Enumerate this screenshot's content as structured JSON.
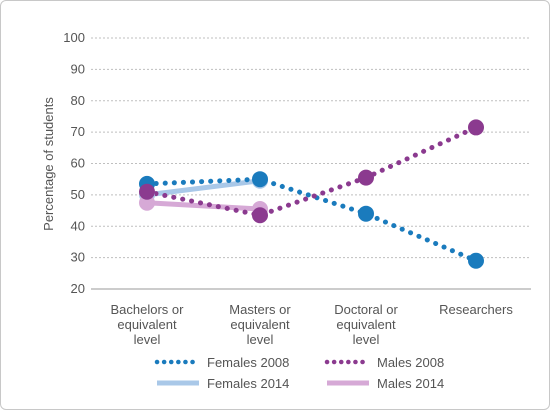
{
  "chart_data": {
    "type": "line",
    "title": "",
    "xlabel": "",
    "ylabel": "Percentage of students",
    "ylim": [
      20,
      100
    ],
    "yticks": [
      20,
      30,
      40,
      50,
      60,
      70,
      80,
      90,
      100
    ],
    "categories": [
      [
        "Bachelors or",
        "equivalent",
        "level"
      ],
      [
        "Masters or",
        "equivalent",
        "level"
      ],
      [
        "Doctoral or",
        "equivalent",
        "level"
      ],
      [
        "Researchers"
      ]
    ],
    "grid": true,
    "legend_position": "bottom",
    "series": [
      {
        "name": "Females 2008",
        "values": [
          53.5,
          55,
          44,
          29
        ],
        "color": "#1a7bbd",
        "style": "dotted"
      },
      {
        "name": "Males 2008",
        "values": [
          51,
          43.5,
          55.5,
          71.5
        ],
        "color": "#8b3a8f",
        "style": "dotted"
      },
      {
        "name": "Females 2014",
        "values": [
          50,
          54.5,
          null,
          null
        ],
        "color": "#a9c8e8",
        "style": "solid"
      },
      {
        "name": "Males 2014",
        "values": [
          47.5,
          45.5,
          null,
          null
        ],
        "color": "#d6a9d6",
        "style": "solid"
      }
    ]
  }
}
